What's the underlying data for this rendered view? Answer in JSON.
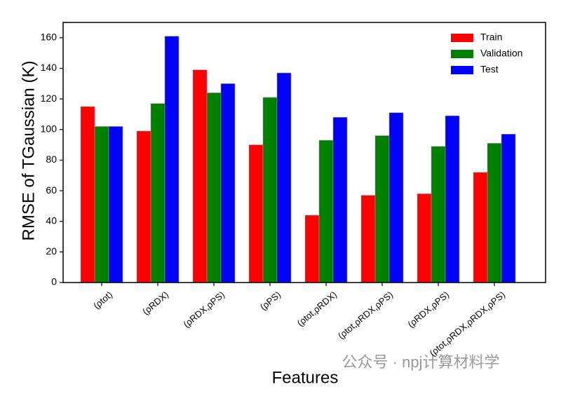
{
  "chart_data": {
    "type": "bar",
    "y_label": "RMSE of TGaussian (K)",
    "x_label": "Features",
    "categories": [
      "(ρtot)",
      "(ρRDX)",
      "(ρRDX,ρPS)",
      "(ρPS)",
      "(ρtot,ρRDX)",
      "(ρtot,ρRDX,ρPS)",
      "(ρRDX,ρPS)",
      "(ρtot,ρRDX,ρRDX,ρPS)"
    ],
    "series": [
      {
        "name": "Train",
        "color": "#ff0000",
        "values": [
          115,
          99,
          139,
          90,
          44,
          57,
          58,
          72
        ]
      },
      {
        "name": "Validation",
        "color": "#008000",
        "values": [
          102,
          117,
          124,
          121,
          93,
          96,
          89,
          91
        ]
      },
      {
        "name": "Test",
        "color": "#0000ff",
        "values": [
          102,
          161,
          130,
          137,
          108,
          111,
          109,
          97
        ]
      }
    ],
    "ylim": [
      0,
      170
    ],
    "yticks": [
      0,
      20,
      40,
      60,
      80,
      100,
      120,
      140,
      160
    ],
    "legend": "upper right",
    "watermark": "公众号 · npj计算材料学"
  }
}
